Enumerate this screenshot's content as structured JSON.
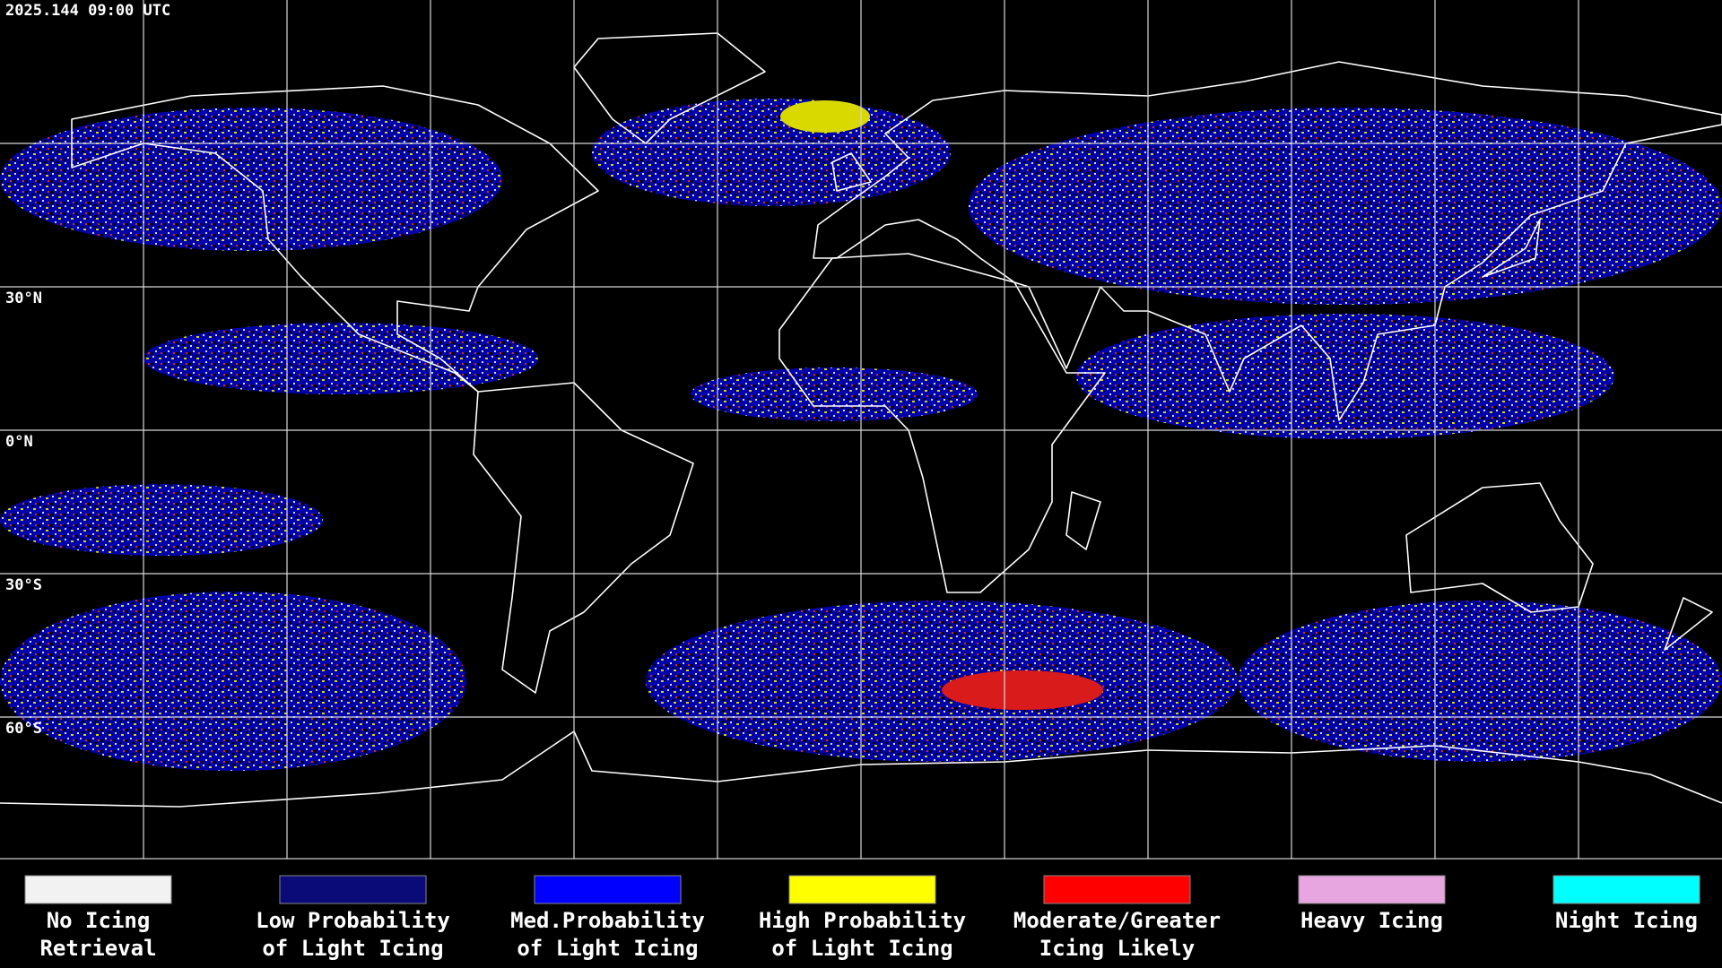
{
  "timestamp": "2025.144 09:00 UTC",
  "grid": {
    "lat_labels": [
      "30°N",
      "0°N",
      "30°S",
      "60°S"
    ]
  },
  "legend": [
    {
      "color": "#f2f2f2",
      "label": [
        "No Icing",
        "Retrieval"
      ]
    },
    {
      "color": "#0a0a78",
      "label": [
        "Low Probability",
        "of Light Icing"
      ]
    },
    {
      "color": "#0000ff",
      "label": [
        "Med.Probability",
        "of Light Icing"
      ]
    },
    {
      "color": "#ffff00",
      "label": [
        "High Probability",
        "of Light Icing"
      ]
    },
    {
      "color": "#ff0000",
      "label": [
        "Moderate/Greater",
        "Icing Likely"
      ]
    },
    {
      "color": "#e8a6e0",
      "label": [
        "Heavy Icing"
      ]
    },
    {
      "color": "#00ffff",
      "label": [
        "Night Icing"
      ]
    }
  ]
}
